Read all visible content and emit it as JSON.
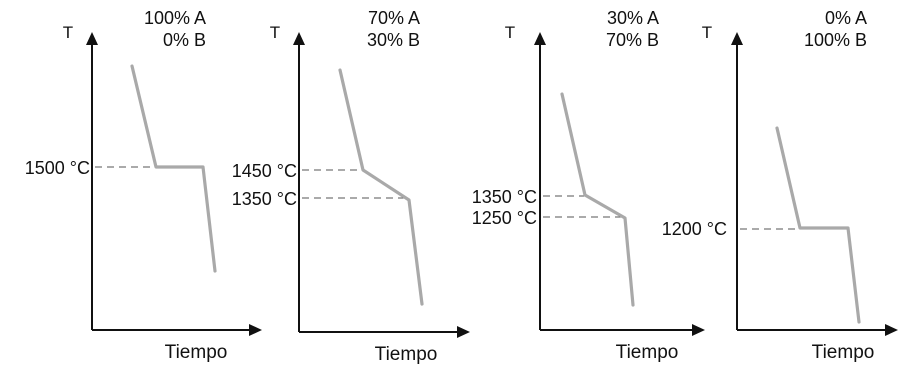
{
  "chart_data": [
    {
      "type": "line",
      "composition": [
        "100% A",
        "0% B"
      ],
      "xlabel": "Tiempo",
      "ylabel": "T",
      "series": [
        {
          "values": [
            [
              0.0,
              0.0
            ],
            [
              1.0,
              1.0
            ],
            [
              2.0,
              1.0
            ],
            [
              2.2,
              2.0
            ]
          ]
        }
      ],
      "annotations": [
        "1500 °C"
      ]
    },
    {
      "type": "line",
      "composition": [
        "70% A",
        "30% B"
      ],
      "xlabel": "Tiempo",
      "ylabel": "T",
      "series": [
        {
          "values": [
            [
              0.0,
              0.0
            ],
            [
              1.0,
              1.0
            ],
            [
              2.0,
              2.0
            ],
            [
              2.5,
              3.0
            ]
          ]
        }
      ],
      "annotations": [
        "1450 °C",
        "1350 °C"
      ]
    },
    {
      "type": "line",
      "composition": [
        "30% A",
        "70% B"
      ],
      "xlabel": "Tiempo",
      "ylabel": "T",
      "series": [
        {
          "values": [
            [
              0.0,
              0.0
            ],
            [
              1.0,
              1.0
            ],
            [
              2.0,
              2.0
            ],
            [
              2.5,
              3.0
            ]
          ]
        }
      ],
      "annotations": [
        "1350 °C",
        "1250 °C"
      ]
    },
    {
      "type": "line",
      "composition": [
        "0% A",
        "100% B"
      ],
      "xlabel": "Tiempo",
      "ylabel": "T",
      "series": [
        {
          "values": [
            [
              0.0,
              0.0
            ],
            [
              1.0,
              1.0
            ],
            [
              2.0,
              1.0
            ],
            [
              2.2,
              2.0
            ]
          ]
        }
      ],
      "annotations": [
        "1200 °C"
      ]
    }
  ]
}
